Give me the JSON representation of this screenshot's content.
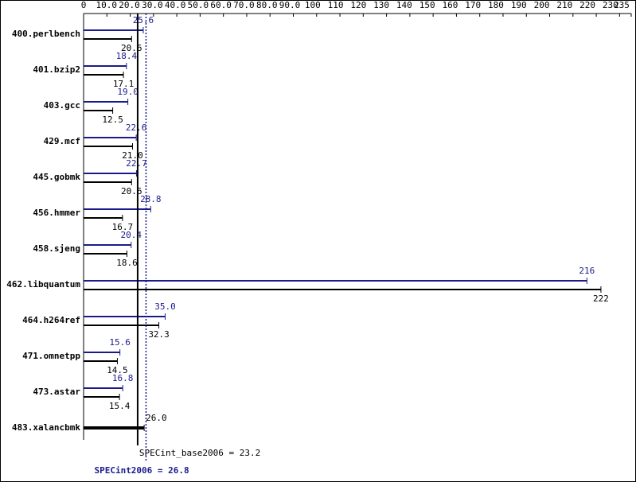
{
  "chart_data": {
    "type": "bar",
    "orientation": "horizontal",
    "categories": [
      "400.perlbench",
      "401.bzip2",
      "403.gcc",
      "429.mcf",
      "445.gobmk",
      "456.hmmer",
      "458.sjeng",
      "462.libquantum",
      "464.h264ref",
      "471.omnetpp",
      "473.astar",
      "483.xalancbmk"
    ],
    "series": [
      {
        "name": "SPECint2006",
        "color": "#1a1a8c",
        "values": [
          25.6,
          18.4,
          19.0,
          22.6,
          22.7,
          28.8,
          20.4,
          216,
          35.0,
          15.6,
          16.8,
          null
        ],
        "value_labels": [
          "25.6",
          "18.4",
          "19.0",
          "22.6",
          "22.7",
          "28.8",
          "20.4",
          "216",
          "35.0",
          "15.6",
          "16.8",
          null
        ]
      },
      {
        "name": "SPECint_base2006",
        "color": "#000000",
        "values": [
          20.6,
          17.1,
          12.5,
          21.0,
          20.6,
          16.7,
          18.6,
          222,
          32.3,
          14.5,
          15.4,
          26.0
        ],
        "value_labels": [
          "20.6",
          "17.1",
          "12.5",
          "21.0",
          "20.6",
          "16.7",
          "18.6",
          "222",
          "32.3",
          "14.5",
          "15.4",
          "26.0"
        ]
      }
    ],
    "xlim": [
      0,
      235
    ],
    "xticks": [
      0,
      {
        "value": 10,
        "label": "10.0"
      },
      {
        "value": 20,
        "label": "20.0"
      },
      {
        "value": 30,
        "label": "30.0"
      },
      {
        "value": 40,
        "label": "40.0"
      },
      {
        "value": 50,
        "label": "50.0"
      },
      {
        "value": 60,
        "label": "60.0"
      },
      {
        "value": 70,
        "label": "70.0"
      },
      {
        "value": 80,
        "label": "80.0"
      },
      {
        "value": 90,
        "label": "90.0"
      },
      100,
      110,
      120,
      130,
      140,
      150,
      160,
      170,
      180,
      190,
      200,
      210,
      220,
      230,
      235
    ],
    "reference_lines": [
      {
        "label": "SPECint_base2006 = 23.2",
        "value": 23.2,
        "color": "#000000"
      },
      {
        "label": "SPECint2006 = 26.8",
        "value": 26.8,
        "color": "#1a1a8c"
      }
    ]
  }
}
